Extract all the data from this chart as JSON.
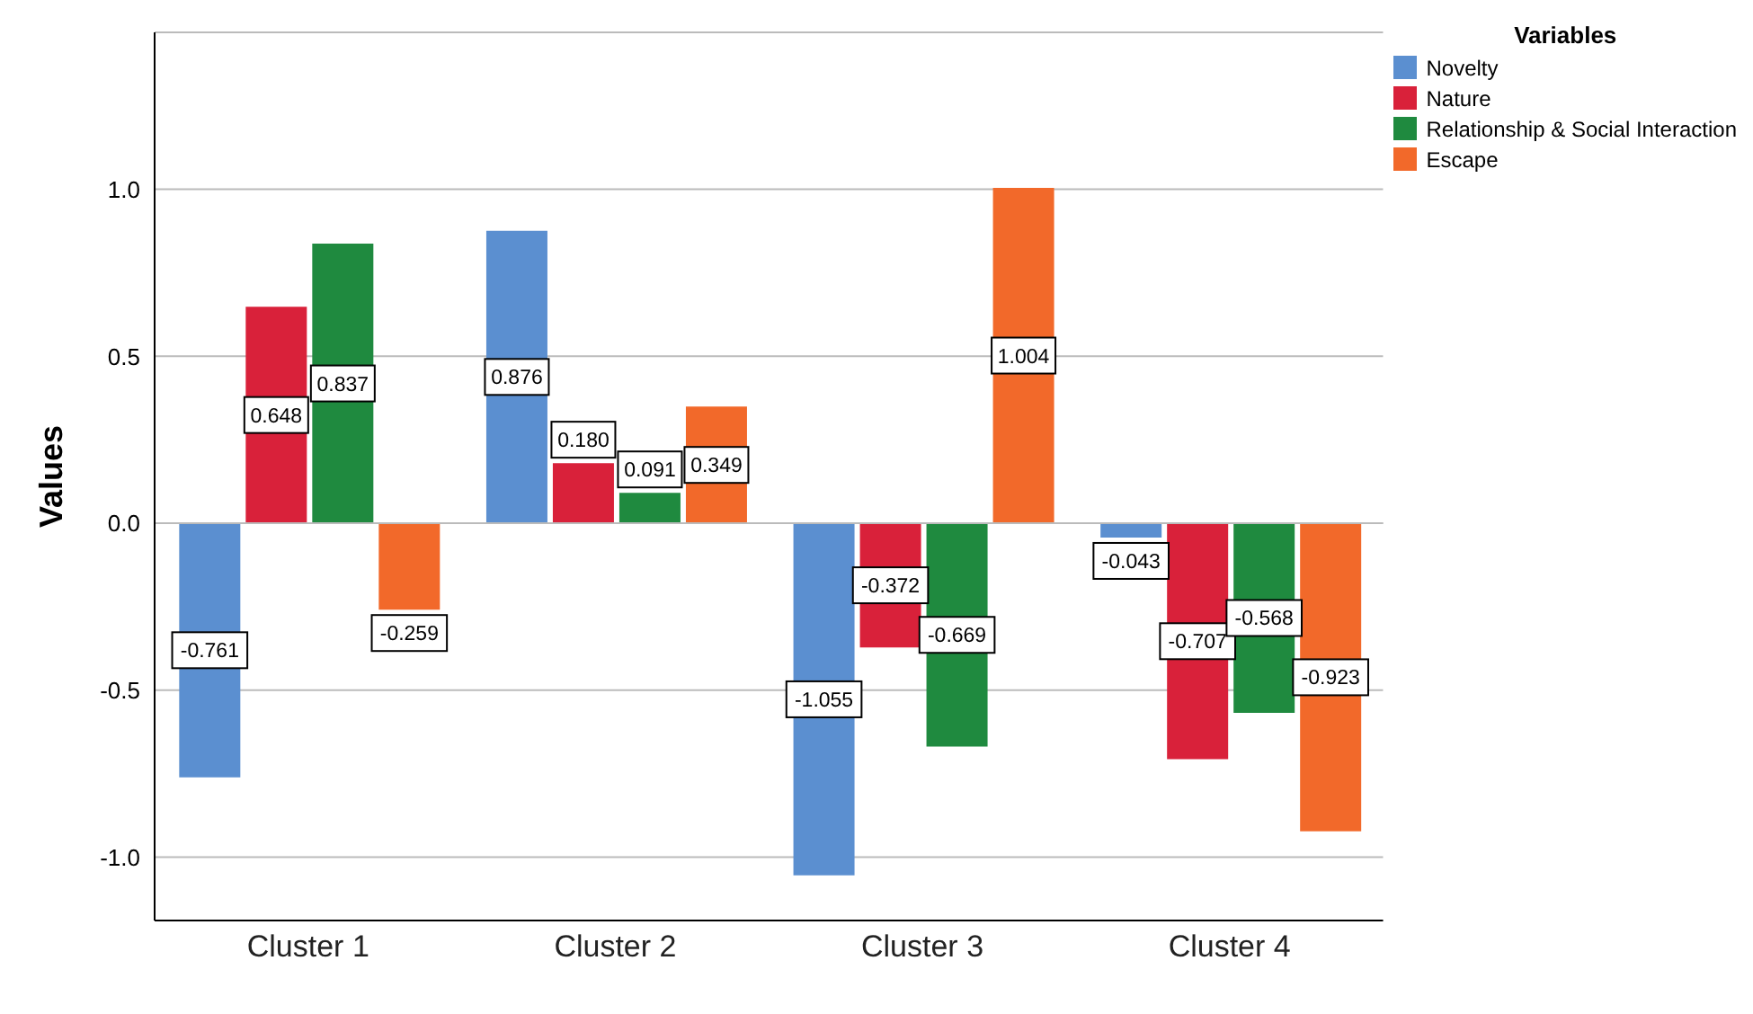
{
  "chart_data": {
    "type": "bar",
    "categories": [
      "Cluster 1",
      "Cluster 2",
      "Cluster 3",
      "Cluster 4"
    ],
    "series": [
      {
        "name": "Novelty",
        "color": "#5b8fd0",
        "values": [
          -0.761,
          0.876,
          -1.055,
          -0.043
        ],
        "value_labels": [
          "-0.761",
          "0.876",
          "-1.055",
          "-0.043"
        ]
      },
      {
        "name": "Nature",
        "color": "#d9213a",
        "values": [
          0.648,
          0.18,
          -0.372,
          -0.707
        ],
        "value_labels": [
          "0.648",
          "0.180",
          "-0.372",
          "-0.707"
        ]
      },
      {
        "name": "Relationship & Social Interaction",
        "color": "#1f8a3f",
        "values": [
          0.837,
          0.091,
          -0.669,
          -0.568
        ],
        "value_labels": [
          "0.837",
          "0.091",
          "-0.669",
          "-0.568"
        ]
      },
      {
        "name": "Escape",
        "color": "#f2692a",
        "values": [
          -0.259,
          0.349,
          1.004,
          -0.923
        ],
        "value_labels": [
          "-0.259",
          "0.349",
          "1.004",
          "-0.923"
        ]
      }
    ],
    "ylabel": "Values",
    "legend_title": "Variables",
    "ylim": [
      -1.19,
      1.47
    ],
    "yticks": [
      {
        "value": -1,
        "label": "-1.0"
      },
      {
        "value": -0.5,
        "label": "-0.5"
      },
      {
        "value": 0,
        "label": "0.0"
      },
      {
        "value": 0.5,
        "label": "0.5"
      },
      {
        "value": 1,
        "label": "1.0"
      }
    ],
    "grid": "y",
    "legend": "top right"
  }
}
